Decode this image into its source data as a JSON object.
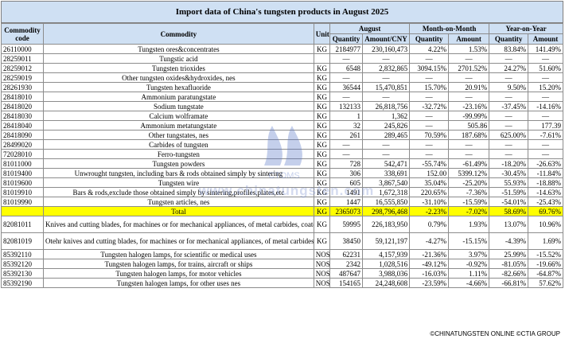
{
  "title": "Import data of China's tungsten products in August 2025",
  "headers": {
    "code": "Commodity code",
    "commodity": "Commodity",
    "unit": "Unit",
    "august": "August",
    "mom": "Month-on-Month",
    "yoy": "Year-on-Year",
    "quantity": "Quantity",
    "amount_cny": "Amount/CNY",
    "quantity2": "Quantity",
    "amount2": "Amount",
    "quantity3": "Quantity",
    "amount3": "Amount"
  },
  "rows": [
    {
      "code": "26110000",
      "name": "Tungsten ores&concentrates",
      "unit": "KG",
      "qty": "2184977",
      "amt": "230,160,473",
      "mq": "4.22%",
      "ma": "1.53%",
      "yq": "83.84%",
      "ya": "141.49%"
    },
    {
      "code": "28259011",
      "name": "Tungstic acid",
      "unit": "",
      "qty": "—",
      "amt": "—",
      "mq": "—",
      "ma": "—",
      "yq": "—",
      "ya": "—"
    },
    {
      "code": "28259012",
      "name": "Tungsten trioxides",
      "unit": "KG",
      "qty": "6548",
      "amt": "2,832,865",
      "mq": "3094.15%",
      "ma": "2701.52%",
      "yq": "24.27%",
      "ya": "51.60%"
    },
    {
      "code": "28259019",
      "name": "Other tungsten oxides&hydroxides, nes",
      "unit": "KG",
      "qty": "—",
      "amt": "—",
      "mq": "—",
      "ma": "—",
      "yq": "—",
      "ya": "—"
    },
    {
      "code": "28261930",
      "name": "Tungsten hexafluoride",
      "unit": "KG",
      "qty": "36544",
      "amt": "15,470,851",
      "mq": "15.70%",
      "ma": "20.91%",
      "yq": "9.50%",
      "ya": "15.20%"
    },
    {
      "code": "28418010",
      "name": "Ammonium paratungstate",
      "unit": "KG",
      "qty": "—",
      "amt": "—",
      "mq": "—",
      "ma": "—",
      "yq": "—",
      "ya": "—"
    },
    {
      "code": "28418020",
      "name": "Sodium tungstate",
      "unit": "KG",
      "qty": "132133",
      "amt": "26,818,756",
      "mq": "-32.72%",
      "ma": "-23.16%",
      "yq": "-37.45%",
      "ya": "-14.16%"
    },
    {
      "code": "28418030",
      "name": "Calcium wolframate",
      "unit": "KG",
      "qty": "1",
      "amt": "1,362",
      "mq": "—",
      "ma": "-99.99%",
      "yq": "—",
      "ya": "—"
    },
    {
      "code": "28418040",
      "name": "Ammonium metatungstate",
      "unit": "KG",
      "qty": "32",
      "amt": "245,826",
      "mq": "—",
      "ma": "505.86",
      "yq": "—",
      "ya": "177.39"
    },
    {
      "code": "28418090",
      "name": "Other tungstates, nes",
      "unit": "KG",
      "qty": "261",
      "amt": "289,465",
      "mq": "70.59%",
      "ma": "187.68%",
      "yq": "625.00%",
      "ya": "-7.61%"
    },
    {
      "code": "28499020",
      "name": "Carbides of tungsten",
      "unit": "KG",
      "qty": "—",
      "amt": "—",
      "mq": "—",
      "ma": "—",
      "yq": "—",
      "ya": "—"
    },
    {
      "code": "72028010",
      "name": "Ferro-tungsten",
      "unit": "KG",
      "qty": "—",
      "amt": "—",
      "mq": "—",
      "ma": "—",
      "yq": "—",
      "ya": "—"
    },
    {
      "code": "81011000",
      "name": "Tungsten powders",
      "unit": "KG",
      "qty": "728",
      "amt": "542,471",
      "mq": "-55.74%",
      "ma": "-61.49%",
      "yq": "-18.20%",
      "ya": "-26.63%"
    },
    {
      "code": "81019400",
      "name": "Unwrought tungsten, including bars & rods obtained simply by sintering",
      "unit": "KG",
      "qty": "306",
      "amt": "338,691",
      "mq": "152.00",
      "ma": "5399.12%",
      "yq": "-30.45%",
      "ya": "-11.84%"
    },
    {
      "code": "81019600",
      "name": "Tungsten wire",
      "unit": "KG",
      "qty": "605",
      "amt": "3,867,540",
      "mq": "35.04%",
      "ma": "-25.20%",
      "yq": "55.93%",
      "ya": "-18.88%"
    },
    {
      "code": "81019910",
      "name": "Bars & rods,exclude those obtained simply by sintering,profiles,plates,etc",
      "unit": "KG",
      "qty": "1491",
      "amt": "1,672,318",
      "mq": "220.65%",
      "ma": "-7.36%",
      "yq": "-51.59%",
      "ya": "-14.63%"
    },
    {
      "code": "81019990",
      "name": "Tungsten articles, nes",
      "unit": "KG",
      "qty": "1447",
      "amt": "16,555,850",
      "mq": "-31.10%",
      "ma": "-15.59%",
      "yq": "-54.01%",
      "ya": "-25.43%"
    },
    {
      "code": "",
      "name": "Total",
      "unit": "KG",
      "qty": "2365073",
      "amt": "298,796,468",
      "mq": "-2.23%",
      "ma": "-7.02%",
      "yq": "58.69%",
      "ya": "69.76%",
      "total": true
    },
    {
      "code": "82081011",
      "name": "Knives and cutting blades, for machines or for mechanical appliances, of metal carbides, coated or plated",
      "unit": "KG",
      "qty": "59995",
      "amt": "226,183,950",
      "mq": "0.79%",
      "ma": "1.93%",
      "yq": "13.07%",
      "ya": "10.96%",
      "wrap": true
    },
    {
      "code": "82081019",
      "name": "Otehr knives and cutting blades, for machines or for mechanical appliances, of metal carbides",
      "unit": "KG",
      "qty": "38450",
      "amt": "59,121,197",
      "mq": "-4.27%",
      "ma": "-15.15%",
      "yq": "-4.39%",
      "ya": "1.69%",
      "wrap": true
    },
    {
      "code": "85392110",
      "name": "Tungsten halogen lamps, for scientific or medical uses",
      "unit": "NOS",
      "qty": "62231",
      "amt": "4,157,939",
      "mq": "-21.36%",
      "ma": "3.97%",
      "yq": "25.99%",
      "ya": "-15.52%"
    },
    {
      "code": "85392120",
      "name": "Tungsten halogen lamps, for trains, aircraft or ships",
      "unit": "NOS",
      "qty": "2342",
      "amt": "1,028,516",
      "mq": "-49.12%",
      "ma": "-0.92%",
      "yq": "-81.05%",
      "ya": "-19.66%"
    },
    {
      "code": "85392130",
      "name": "Tungsten halogen lamps, for motor vehicles",
      "unit": "NOS",
      "qty": "487647",
      "amt": "3,988,036",
      "mq": "-16.03%",
      "ma": "1.11%",
      "yq": "-82.66%",
      "ya": "-64.87%"
    },
    {
      "code": "85392190",
      "name": "Tungsten halogen lamps, for other uses nes",
      "unit": "NOS",
      "qty": "154165",
      "amt": "24,248,608",
      "mq": "-23.59%",
      "ma": "-4.66%",
      "yq": "-66.81%",
      "ya": "57.62%"
    }
  ],
  "watermark": "www.chinatungsten.com",
  "watermark_logo": "CTOMS",
  "footer": "©CHINATUNGSTEN ONLINE ©CTIA GROUP",
  "colors": {
    "header_bg": "#cfe0f3",
    "total_bg": "#ffff00",
    "positive": "#e02020",
    "negative": "#1f9a3a"
  }
}
